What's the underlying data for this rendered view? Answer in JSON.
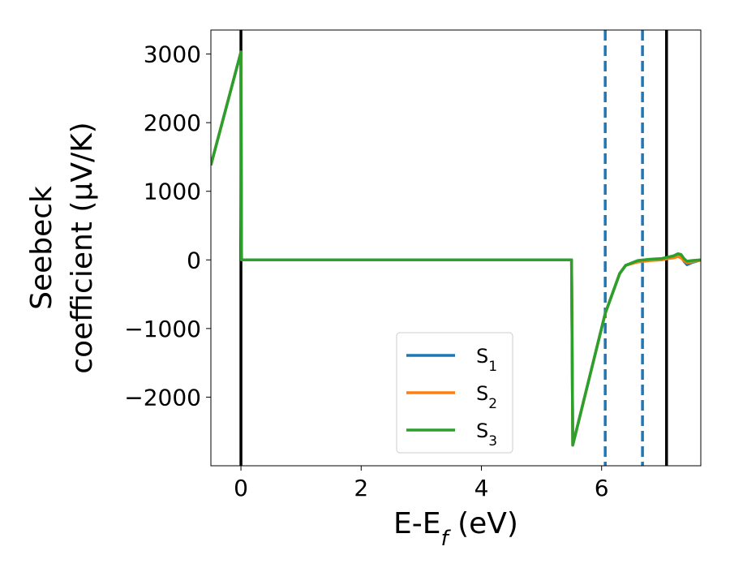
{
  "chart_data": {
    "type": "line",
    "xlabel": "E-E",
    "xlabel_sub": "f",
    "xlabel_unit": " (eV)",
    "ylabel_line1": "Seebeck",
    "ylabel_line2": "coefficient  (μV/K)",
    "xlim": [
      -0.5,
      7.65
    ],
    "ylim": [
      -3000,
      3350
    ],
    "x_ticks": [
      0,
      2,
      4,
      6
    ],
    "x_tick_labels": [
      "0",
      "2",
      "4",
      "6"
    ],
    "y_ticks": [
      3000,
      2000,
      1000,
      0,
      -1000,
      -2000
    ],
    "y_tick_labels": [
      "3000",
      "2000",
      "1000",
      "0",
      "−1000",
      "−2000"
    ],
    "legend_position": "lower-center",
    "vlines": [
      {
        "x": 0.0,
        "style": "solid",
        "color": "#000000"
      },
      {
        "x": 7.08,
        "style": "solid",
        "color": "#000000"
      },
      {
        "x": 6.06,
        "style": "dashed",
        "color": "#1f77b4"
      },
      {
        "x": 6.68,
        "style": "dashed",
        "color": "#1f77b4"
      }
    ],
    "series": [
      {
        "name": "S",
        "sub": "1",
        "color": "#1f77b4",
        "x": [
          -0.5,
          0.0,
          0.01,
          5.5,
          5.5,
          5.52,
          6.06,
          6.3,
          6.4,
          6.6,
          6.8,
          7.0,
          7.1,
          7.2,
          7.27,
          7.32,
          7.37,
          7.42,
          7.5,
          7.65
        ],
        "y": [
          1380,
          3030,
          0,
          0,
          -10,
          -2700,
          -780,
          -200,
          -80,
          -20,
          0,
          10,
          30,
          40,
          80,
          60,
          -20,
          -70,
          -40,
          0
        ]
      },
      {
        "name": "S",
        "sub": "2",
        "color": "#ff7f0e",
        "x": [
          -0.5,
          0.0,
          0.01,
          5.5,
          5.5,
          5.52,
          6.06,
          6.3,
          6.4,
          6.6,
          6.8,
          7.0,
          7.1,
          7.2,
          7.27,
          7.32,
          7.37,
          7.42,
          7.5,
          7.65
        ],
        "y": [
          1380,
          3030,
          0,
          0,
          -10,
          -2700,
          -780,
          -200,
          -80,
          -30,
          -10,
          0,
          20,
          30,
          50,
          30,
          -10,
          -40,
          -30,
          0
        ]
      },
      {
        "name": "S",
        "sub": "3",
        "color": "#2ca02c",
        "x": [
          -0.5,
          0.0,
          0.01,
          5.5,
          5.5,
          5.52,
          6.06,
          6.3,
          6.4,
          6.6,
          6.8,
          7.0,
          7.1,
          7.2,
          7.27,
          7.32,
          7.37,
          7.42,
          7.5,
          7.65
        ],
        "y": [
          1380,
          3030,
          0,
          0,
          -10,
          -2700,
          -780,
          -200,
          -80,
          -10,
          10,
          20,
          40,
          60,
          90,
          80,
          20,
          -20,
          -10,
          0
        ]
      }
    ]
  }
}
